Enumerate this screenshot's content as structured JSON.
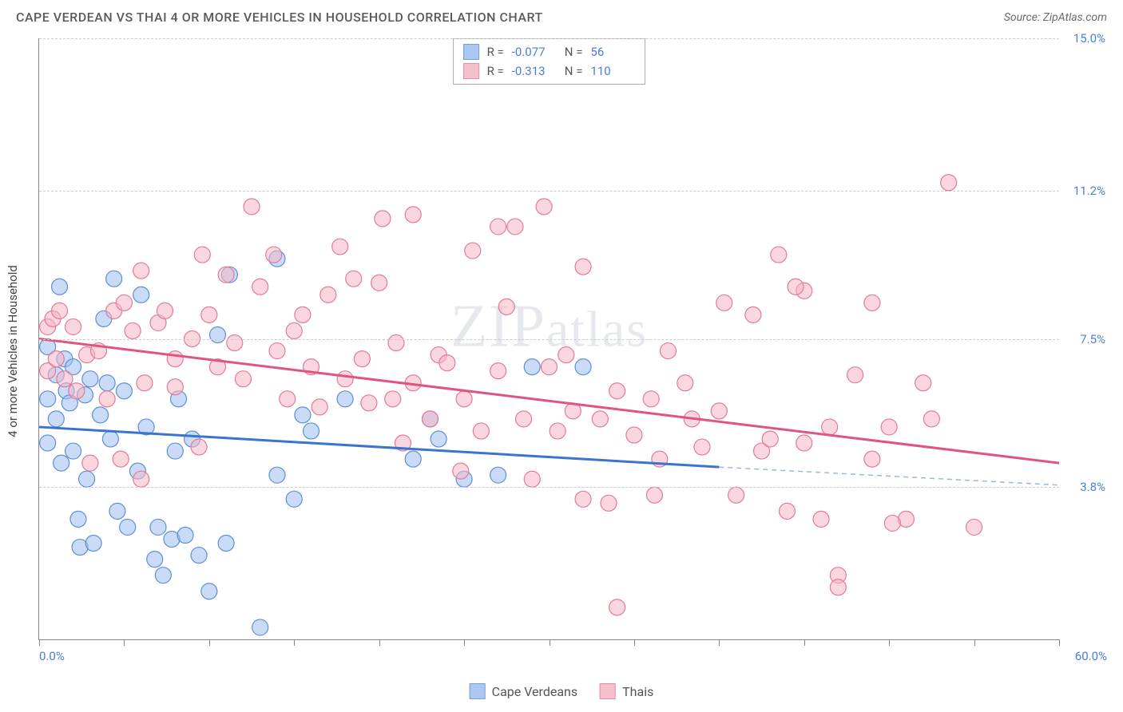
{
  "header": {
    "title": "CAPE VERDEAN VS THAI 4 OR MORE VEHICLES IN HOUSEHOLD CORRELATION CHART",
    "source": "Source: ZipAtlas.com"
  },
  "chart": {
    "type": "scatter",
    "y_axis_title": "4 or more Vehicles in Household",
    "watermark": "ZIPatlas",
    "xlim": [
      0,
      60
    ],
    "ylim": [
      0,
      15
    ],
    "x_tick_step": 5,
    "y_ticks": [
      3.8,
      7.5,
      11.2,
      15.0
    ],
    "y_tick_labels": [
      "3.8%",
      "7.5%",
      "11.2%",
      "15.0%"
    ],
    "x_min_label": "0.0%",
    "x_max_label": "60.0%",
    "background_color": "#ffffff",
    "grid_color": "#cccccc",
    "axis_color": "#888888",
    "tick_label_color": "#4a7fd8"
  },
  "series": [
    {
      "name": "Cape Verdeans",
      "legend_label": "Cape Verdeans",
      "fill": "#9dbef0",
      "stroke": "#5d8fd6",
      "fill_opacity": 0.55,
      "marker_radius": 10,
      "R_label": "R =",
      "R_value": "-0.077",
      "N_label": "N =",
      "N_value": "56",
      "trend": {
        "x1": 0,
        "y1": 5.3,
        "x2": 40,
        "y2": 4.3,
        "color": "#3a74d0",
        "width": 3,
        "extend_to": 60,
        "extend_y": 3.85,
        "dash_color": "#9ab7e0"
      },
      "points": [
        [
          0.5,
          7.3
        ],
        [
          0.5,
          6.0
        ],
        [
          0.5,
          4.9
        ],
        [
          1.0,
          6.6
        ],
        [
          1.0,
          5.5
        ],
        [
          1.2,
          8.8
        ],
        [
          1.3,
          4.4
        ],
        [
          1.5,
          7.0
        ],
        [
          1.6,
          6.2
        ],
        [
          1.8,
          5.9
        ],
        [
          2.0,
          6.8
        ],
        [
          2.0,
          4.7
        ],
        [
          2.3,
          3.0
        ],
        [
          2.4,
          2.3
        ],
        [
          2.7,
          6.1
        ],
        [
          2.8,
          4.0
        ],
        [
          3.0,
          6.5
        ],
        [
          3.2,
          2.4
        ],
        [
          3.6,
          5.6
        ],
        [
          3.8,
          8.0
        ],
        [
          4.0,
          6.4
        ],
        [
          4.2,
          5.0
        ],
        [
          4.4,
          9.0
        ],
        [
          4.6,
          3.2
        ],
        [
          5.0,
          6.2
        ],
        [
          5.2,
          2.8
        ],
        [
          5.8,
          4.2
        ],
        [
          6.0,
          8.6
        ],
        [
          6.3,
          5.3
        ],
        [
          6.8,
          2.0
        ],
        [
          7.0,
          2.8
        ],
        [
          7.3,
          1.6
        ],
        [
          7.8,
          2.5
        ],
        [
          8.0,
          4.7
        ],
        [
          8.2,
          6.0
        ],
        [
          8.6,
          2.6
        ],
        [
          9.0,
          5.0
        ],
        [
          9.4,
          2.1
        ],
        [
          10.0,
          1.2
        ],
        [
          10.5,
          7.6
        ],
        [
          11.0,
          2.4
        ],
        [
          11.2,
          9.1
        ],
        [
          14.0,
          9.5
        ],
        [
          14.0,
          4.1
        ],
        [
          15.0,
          3.5
        ],
        [
          15.5,
          5.6
        ],
        [
          16.0,
          5.2
        ],
        [
          18.0,
          6.0
        ],
        [
          22.0,
          4.5
        ],
        [
          23.0,
          5.5
        ],
        [
          23.5,
          5.0
        ],
        [
          25.0,
          4.0
        ],
        [
          27.0,
          4.1
        ],
        [
          29.0,
          6.8
        ],
        [
          32.0,
          6.8
        ],
        [
          13.0,
          0.3
        ]
      ]
    },
    {
      "name": "Thais",
      "legend_label": "Thais",
      "fill": "#f5b5c4",
      "stroke": "#e37a96",
      "fill_opacity": 0.55,
      "marker_radius": 10,
      "R_label": "R =",
      "R_value": "-0.313",
      "N_label": "N =",
      "N_value": "110",
      "trend": {
        "x1": 0,
        "y1": 7.5,
        "x2": 60,
        "y2": 4.4,
        "color": "#e05580",
        "width": 3
      },
      "points": [
        [
          0.5,
          7.8
        ],
        [
          0.5,
          6.7
        ],
        [
          0.8,
          8.0
        ],
        [
          1.0,
          7.0
        ],
        [
          1.2,
          8.2
        ],
        [
          1.5,
          6.5
        ],
        [
          2.0,
          7.8
        ],
        [
          2.2,
          6.2
        ],
        [
          2.8,
          7.1
        ],
        [
          3.0,
          4.4
        ],
        [
          3.5,
          7.2
        ],
        [
          4.0,
          6.0
        ],
        [
          4.4,
          8.2
        ],
        [
          5.0,
          8.4
        ],
        [
          5.5,
          7.7
        ],
        [
          6.0,
          9.2
        ],
        [
          6.2,
          6.4
        ],
        [
          7.0,
          7.9
        ],
        [
          7.4,
          8.2
        ],
        [
          8.0,
          7.0
        ],
        [
          9.0,
          7.5
        ],
        [
          9.4,
          4.8
        ],
        [
          10.0,
          8.1
        ],
        [
          10.5,
          6.8
        ],
        [
          11.0,
          9.1
        ],
        [
          11.5,
          7.4
        ],
        [
          12.0,
          6.5
        ],
        [
          13.0,
          8.8
        ],
        [
          13.8,
          9.6
        ],
        [
          14.0,
          7.2
        ],
        [
          14.6,
          6.0
        ],
        [
          15.0,
          7.7
        ],
        [
          15.5,
          8.1
        ],
        [
          16.0,
          6.8
        ],
        [
          16.5,
          5.8
        ],
        [
          17.0,
          8.6
        ],
        [
          18.0,
          6.5
        ],
        [
          18.5,
          9.0
        ],
        [
          19.0,
          7.0
        ],
        [
          20.0,
          8.9
        ],
        [
          20.2,
          10.5
        ],
        [
          20.8,
          6.0
        ],
        [
          21.0,
          7.4
        ],
        [
          22.0,
          6.4
        ],
        [
          22.0,
          10.6
        ],
        [
          23.0,
          5.5
        ],
        [
          23.5,
          7.1
        ],
        [
          24.0,
          6.9
        ],
        [
          25.0,
          6.0
        ],
        [
          25.5,
          9.7
        ],
        [
          26.0,
          5.2
        ],
        [
          27.0,
          6.7
        ],
        [
          27.5,
          8.3
        ],
        [
          28.0,
          10.3
        ],
        [
          28.5,
          5.5
        ],
        [
          29.0,
          4.0
        ],
        [
          30.0,
          6.8
        ],
        [
          30.5,
          5.2
        ],
        [
          31.0,
          7.1
        ],
        [
          32.0,
          3.5
        ],
        [
          32.0,
          9.3
        ],
        [
          33.0,
          5.5
        ],
        [
          33.5,
          3.4
        ],
        [
          34.0,
          6.2
        ],
        [
          34.0,
          0.8
        ],
        [
          35.0,
          5.1
        ],
        [
          36.0,
          6.0
        ],
        [
          36.5,
          4.5
        ],
        [
          37.0,
          7.2
        ],
        [
          38.0,
          6.4
        ],
        [
          39.0,
          4.8
        ],
        [
          40.0,
          5.7
        ],
        [
          41.0,
          3.6
        ],
        [
          42.0,
          8.1
        ],
        [
          42.5,
          4.7
        ],
        [
          43.0,
          5.0
        ],
        [
          43.5,
          9.6
        ],
        [
          44.0,
          3.2
        ],
        [
          45.0,
          4.9
        ],
        [
          45.0,
          8.7
        ],
        [
          46.0,
          3.0
        ],
        [
          46.5,
          5.3
        ],
        [
          47.0,
          1.6
        ],
        [
          47.0,
          1.3
        ],
        [
          48.0,
          6.6
        ],
        [
          49.0,
          4.5
        ],
        [
          50.0,
          5.3
        ],
        [
          51.0,
          3.0
        ],
        [
          52.0,
          6.4
        ],
        [
          52.5,
          5.5
        ],
        [
          53.5,
          11.4
        ],
        [
          55.0,
          2.8
        ],
        [
          12.5,
          10.8
        ],
        [
          17.7,
          9.8
        ],
        [
          27.0,
          10.3
        ],
        [
          29.7,
          10.8
        ],
        [
          4.8,
          4.5
        ],
        [
          6.0,
          4.0
        ],
        [
          8.0,
          6.3
        ],
        [
          19.4,
          5.9
        ],
        [
          21.4,
          4.9
        ],
        [
          24.8,
          4.2
        ],
        [
          38.4,
          5.5
        ],
        [
          40.3,
          8.4
        ],
        [
          44.5,
          8.8
        ],
        [
          49.0,
          8.4
        ],
        [
          50.2,
          2.9
        ],
        [
          9.6,
          9.6
        ],
        [
          36.2,
          3.6
        ],
        [
          31.4,
          5.7
        ]
      ]
    }
  ],
  "legend": {
    "items": [
      "Cape Verdeans",
      "Thais"
    ]
  }
}
